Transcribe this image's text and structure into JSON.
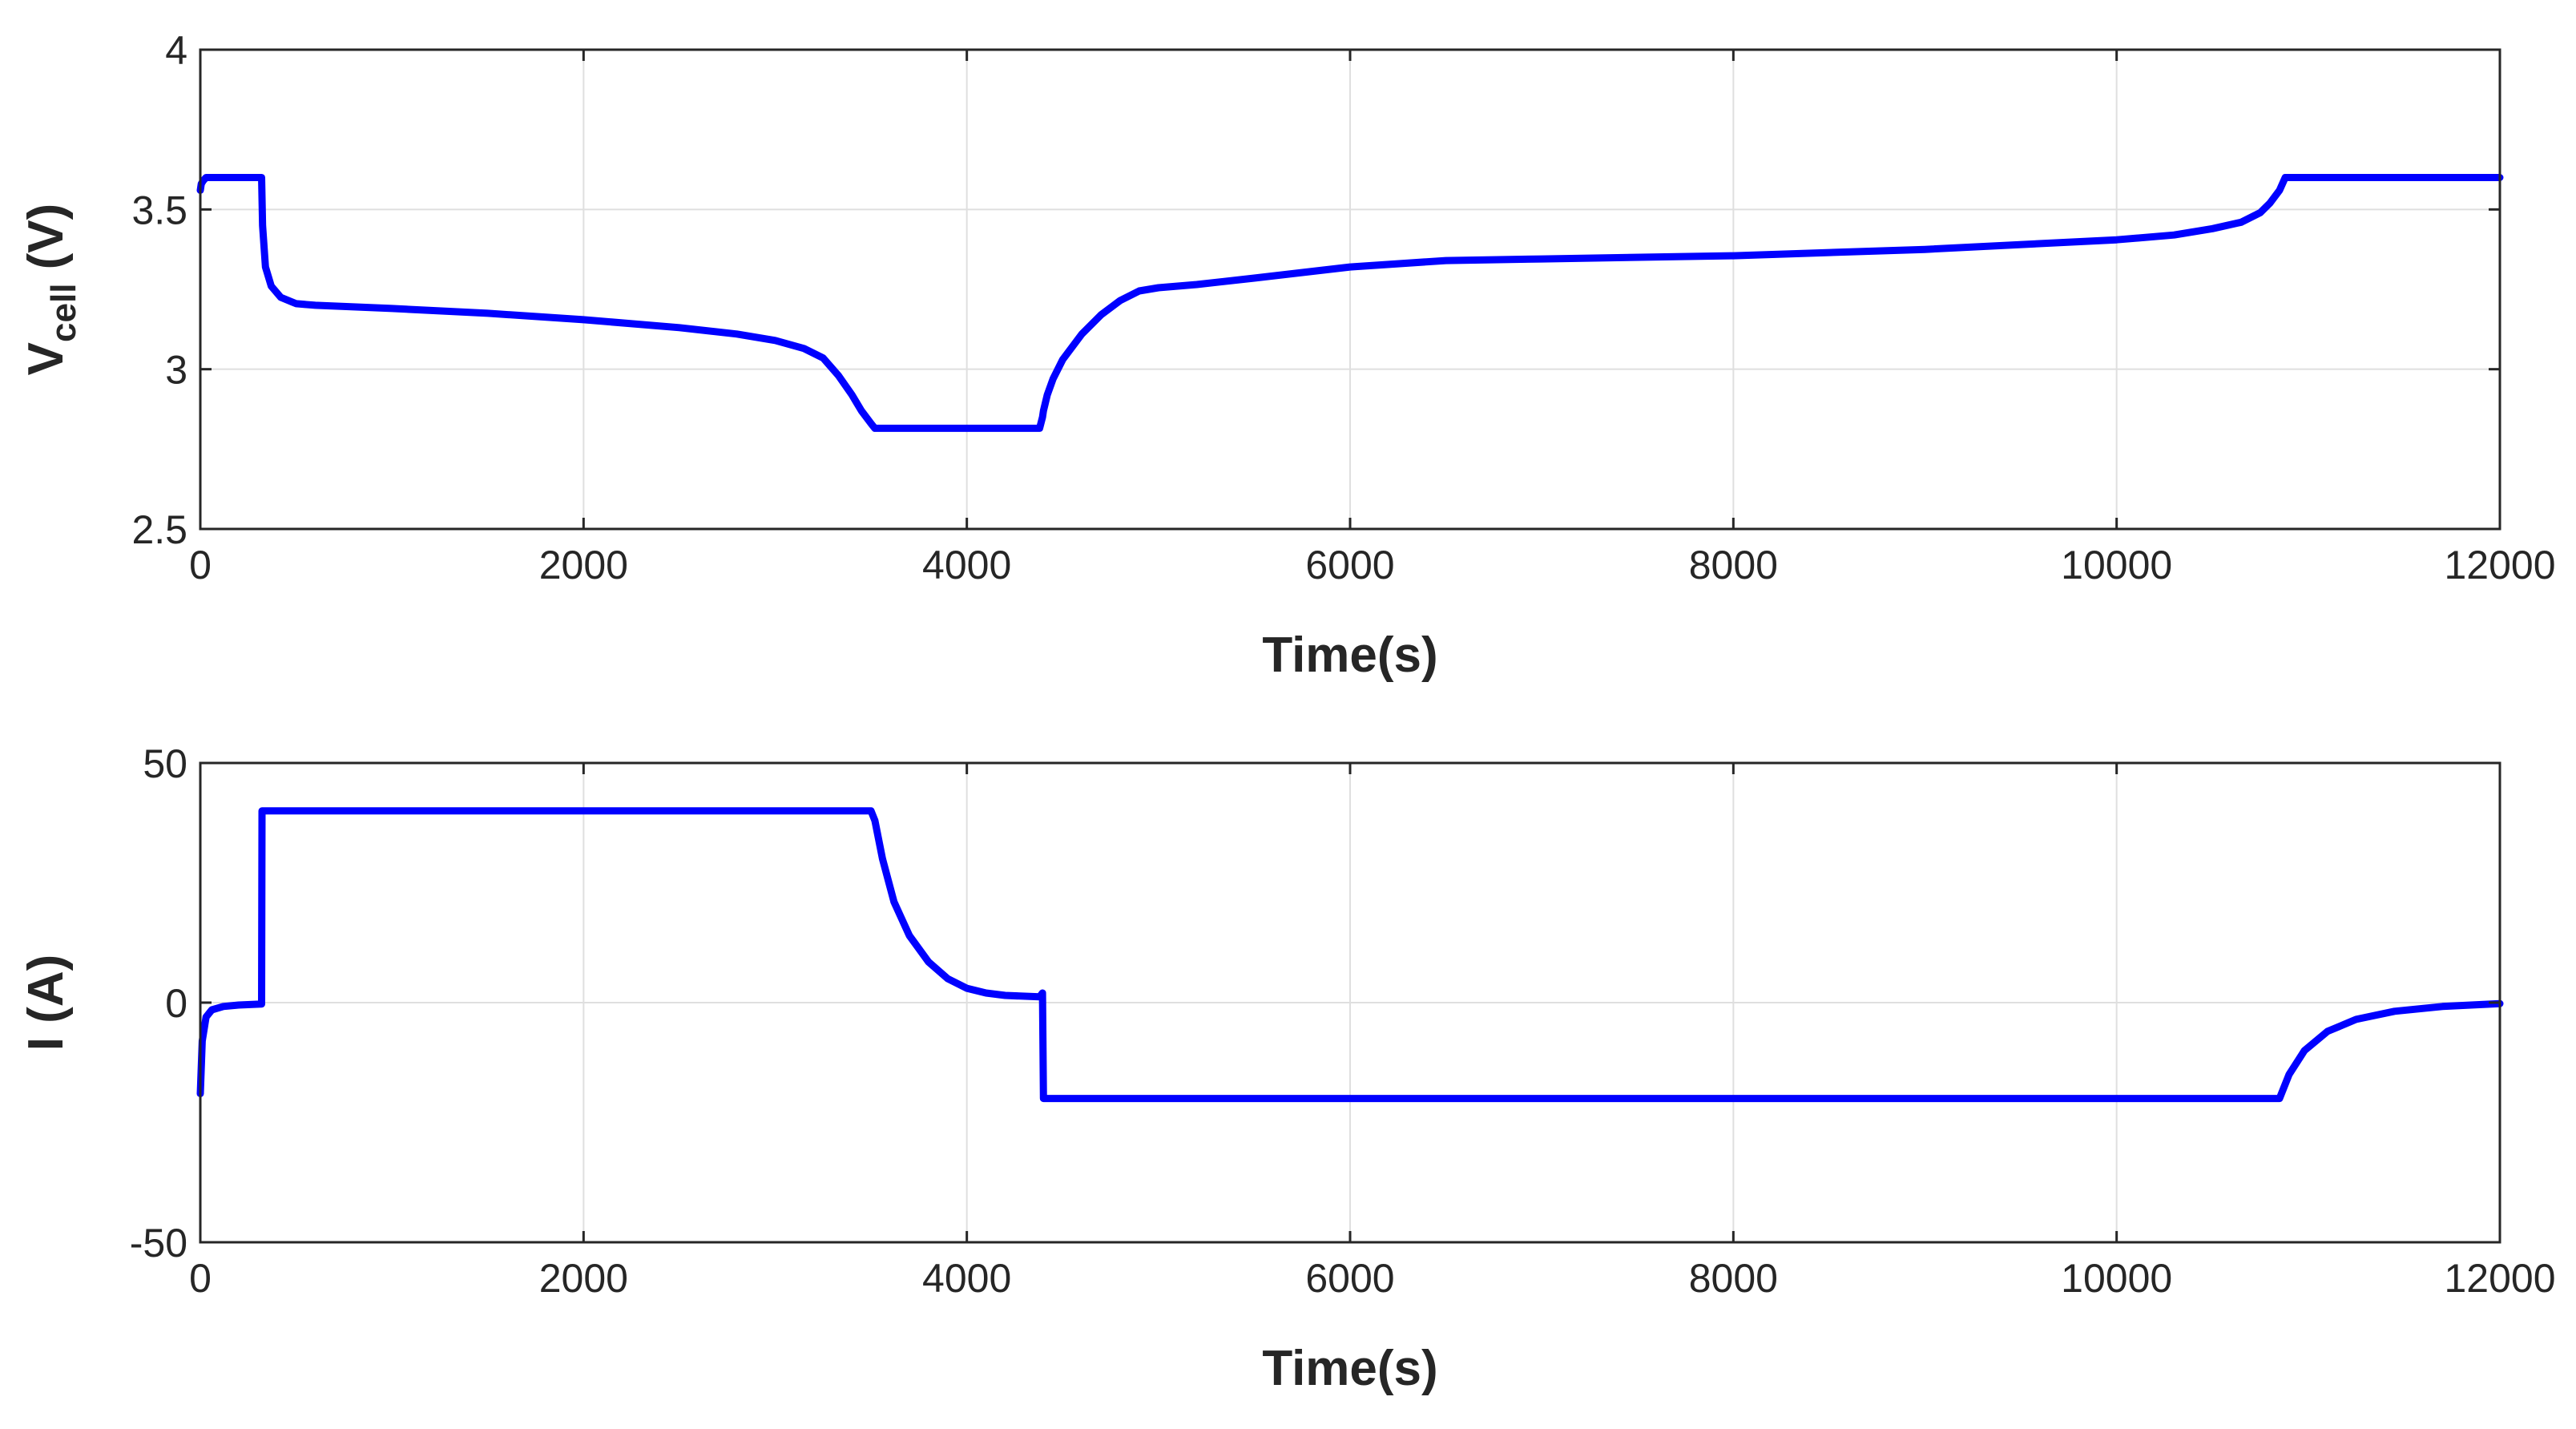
{
  "colors": {
    "series": "#0000ff",
    "axes": "#262626",
    "grid": "#dfdfdf"
  },
  "chart_data": [
    {
      "type": "line",
      "title": "",
      "xlabel": "Time(s)",
      "ylabel_main": "V",
      "ylabel_sub": "cell",
      "ylabel_tail": " (V)",
      "xlim": [
        0,
        12000
      ],
      "ylim": [
        2.5,
        4
      ],
      "xticks": [
        0,
        2000,
        4000,
        6000,
        8000,
        10000,
        12000
      ],
      "yticks": [
        2.5,
        3,
        3.5,
        4
      ],
      "ytick_labels": [
        "2.5",
        "3",
        "3.5",
        "4"
      ],
      "grid": true,
      "series": [
        {
          "x": [
            0,
            5,
            15,
            30,
            320,
            325,
            340,
            370,
            420,
            500,
            600,
            1000,
            1500,
            2000,
            2500,
            2800,
            3000,
            3150,
            3250,
            3330,
            3400,
            3450,
            3500,
            3520,
            4380,
            4395,
            4400,
            4420,
            4450,
            4500,
            4600,
            4700,
            4800,
            4900,
            5000,
            5200,
            5500,
            6000,
            6500,
            7000,
            8000,
            9000,
            10000,
            10300,
            10500,
            10650,
            10750,
            10800,
            10850,
            10880,
            12000
          ],
          "y": [
            3.56,
            3.58,
            3.59,
            3.6,
            3.6,
            3.45,
            3.32,
            3.26,
            3.225,
            3.205,
            3.2,
            3.19,
            3.175,
            3.155,
            3.13,
            3.11,
            3.09,
            3.065,
            3.035,
            2.98,
            2.92,
            2.87,
            2.83,
            2.815,
            2.815,
            2.85,
            2.87,
            2.92,
            2.97,
            3.03,
            3.11,
            3.17,
            3.215,
            3.245,
            3.255,
            3.265,
            3.285,
            3.32,
            3.34,
            3.345,
            3.355,
            3.375,
            3.405,
            3.42,
            3.44,
            3.46,
            3.49,
            3.52,
            3.56,
            3.6,
            3.6
          ]
        }
      ]
    },
    {
      "type": "line",
      "title": "",
      "xlabel": "Time(s)",
      "ylabel": "I (A)",
      "xlim": [
        0,
        12000
      ],
      "ylim": [
        -50,
        50
      ],
      "xticks": [
        0,
        2000,
        4000,
        6000,
        8000,
        10000,
        12000
      ],
      "yticks": [
        -50,
        0,
        50
      ],
      "ytick_labels": [
        "-50",
        "0",
        "50"
      ],
      "grid": true,
      "series": [
        {
          "x": [
            0,
            10,
            30,
            60,
            120,
            200,
            320,
            322,
            3500,
            3520,
            3560,
            3620,
            3700,
            3800,
            3900,
            4000,
            4100,
            4200,
            4380,
            4395,
            4400,
            10850,
            10900,
            10980,
            11100,
            11250,
            11450,
            11700,
            12000
          ],
          "y": [
            -19,
            -8,
            -3,
            -1.5,
            -0.8,
            -0.5,
            -0.3,
            40,
            40,
            38,
            30,
            21,
            14,
            8.5,
            5,
            3,
            2,
            1.5,
            1.2,
            2,
            -20,
            -20,
            -15,
            -10,
            -6,
            -3.5,
            -1.8,
            -0.8,
            -0.2
          ]
        }
      ]
    }
  ]
}
